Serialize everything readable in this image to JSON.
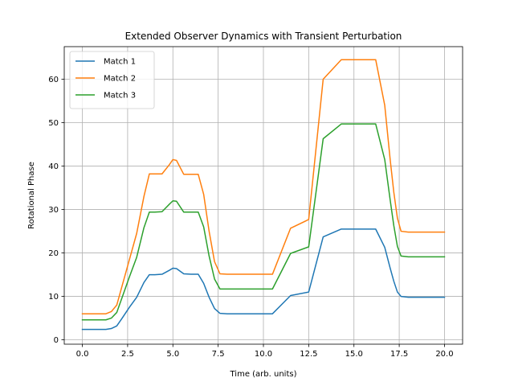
{
  "chart_data": {
    "type": "line",
    "title": "Extended Observer Dynamics with Transient Perturbation",
    "xlabel": "Time (arb. units)",
    "ylabel": "Rotational Phase",
    "xlim": [
      -1.0,
      21.0
    ],
    "ylim": [
      -1.0,
      67.5
    ],
    "xticks": [
      0.0,
      2.5,
      5.0,
      7.5,
      10.0,
      12.5,
      15.0,
      17.5,
      20.0
    ],
    "xtick_labels": [
      "0.0",
      "2.5",
      "5.0",
      "7.5",
      "10.0",
      "12.5",
      "15.0",
      "17.5",
      "20.0"
    ],
    "yticks": [
      0,
      10,
      20,
      30,
      40,
      50,
      60
    ],
    "ytick_labels": [
      "0",
      "10",
      "20",
      "30",
      "40",
      "50",
      "60"
    ],
    "grid": true,
    "legend_position": "top-left",
    "series": [
      {
        "name": "Match 1",
        "color": "#1f77b4",
        "x": [
          0.0,
          1.3,
          1.6,
          1.9,
          2.2,
          2.6,
          3.0,
          3.4,
          3.7,
          4.0,
          4.4,
          4.8,
          5.0,
          5.2,
          5.6,
          6.0,
          6.4,
          6.7,
          7.0,
          7.3,
          7.6,
          8.0,
          9.0,
          10.0,
          10.5,
          11.5,
          12.5,
          13.3,
          14.3,
          15.0,
          16.2,
          16.7,
          17.0,
          17.2,
          17.4,
          17.6,
          18.0,
          19.0,
          20.0
        ],
        "y": [
          2.4,
          2.4,
          2.6,
          3.2,
          5.0,
          7.5,
          9.8,
          13.2,
          15.0,
          15.0,
          15.1,
          16.0,
          16.5,
          16.4,
          15.2,
          15.1,
          15.1,
          13.0,
          9.8,
          7.2,
          6.1,
          6.0,
          6.0,
          6.0,
          6.0,
          10.2,
          11.0,
          23.7,
          25.5,
          25.5,
          25.5,
          21.3,
          16.5,
          13.5,
          11.0,
          10.0,
          9.8,
          9.8,
          9.8
        ]
      },
      {
        "name": "Match 2",
        "color": "#ff7f0e",
        "x": [
          0.0,
          1.3,
          1.6,
          1.9,
          2.2,
          2.6,
          3.0,
          3.4,
          3.7,
          4.0,
          4.4,
          4.8,
          5.0,
          5.2,
          5.6,
          6.0,
          6.4,
          6.7,
          7.0,
          7.3,
          7.6,
          8.0,
          9.0,
          10.0,
          10.5,
          11.5,
          12.5,
          13.3,
          14.3,
          15.0,
          16.2,
          16.7,
          17.0,
          17.2,
          17.4,
          17.6,
          18.0,
          19.0,
          20.0
        ],
        "y": [
          6.0,
          6.0,
          6.5,
          8.0,
          12.5,
          18.5,
          24.5,
          33.0,
          38.2,
          38.2,
          38.2,
          40.3,
          41.5,
          41.3,
          38.1,
          38.1,
          38.1,
          33.5,
          25.0,
          18.0,
          15.2,
          15.1,
          15.1,
          15.1,
          15.1,
          25.7,
          27.7,
          60.0,
          64.5,
          64.5,
          64.5,
          54.0,
          41.5,
          34.0,
          28.0,
          25.0,
          24.8,
          24.8,
          24.8
        ]
      },
      {
        "name": "Match 3",
        "color": "#2ca02c",
        "x": [
          0.0,
          1.3,
          1.6,
          1.9,
          2.2,
          2.6,
          3.0,
          3.4,
          3.7,
          4.0,
          4.4,
          4.8,
          5.0,
          5.2,
          5.6,
          6.0,
          6.4,
          6.7,
          7.0,
          7.3,
          7.6,
          8.0,
          9.0,
          10.0,
          10.5,
          11.5,
          12.5,
          13.3,
          14.3,
          15.0,
          16.2,
          16.7,
          17.0,
          17.2,
          17.4,
          17.6,
          18.0,
          19.0,
          20.0
        ],
        "y": [
          4.6,
          4.6,
          5.0,
          6.3,
          9.8,
          14.5,
          19.0,
          25.8,
          29.4,
          29.4,
          29.5,
          31.2,
          32.0,
          31.9,
          29.4,
          29.4,
          29.4,
          26.0,
          19.3,
          14.0,
          11.7,
          11.7,
          11.7,
          11.7,
          11.7,
          19.9,
          21.4,
          46.3,
          49.7,
          49.7,
          49.7,
          41.5,
          32.2,
          26.3,
          21.5,
          19.3,
          19.1,
          19.1,
          19.1
        ]
      }
    ]
  }
}
